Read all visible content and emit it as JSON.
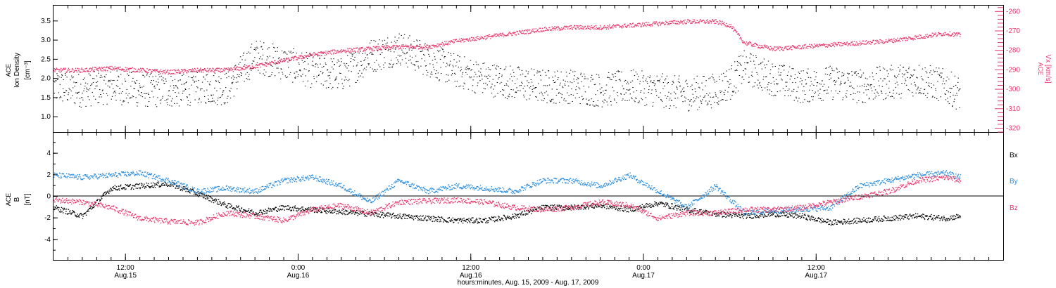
{
  "chart_data": [
    {
      "type": "scatter",
      "panel": "top",
      "ylabel_left": [
        "ACE",
        "Ion Density",
        "[cm⁻³]"
      ],
      "ylabel_right": [
        "ACE",
        "Vx [km/s]"
      ],
      "left_yticks": [
        "1.0",
        "1.5",
        "2.0",
        "2.5",
        "3.0",
        "3.5"
      ],
      "left_ylim": [
        0.6,
        3.9
      ],
      "right_yticks": [
        "-260",
        "-270",
        "-280",
        "-290",
        "-300",
        "-310",
        "-320"
      ],
      "right_ylim": [
        -322,
        -257
      ],
      "colors": {
        "density": "#000000",
        "vx": "#e8386d"
      },
      "series": [
        {
          "name": "Ion Density",
          "axis": "left",
          "color": "#000000",
          "x_hours": [
            0,
            2,
            4,
            6,
            9,
            10,
            12,
            14,
            16,
            18,
            20,
            22,
            24,
            26,
            28,
            30,
            32,
            34,
            36,
            38,
            40,
            42,
            44,
            46,
            47,
            48,
            50,
            52,
            54,
            56,
            58,
            60,
            62,
            63
          ],
          "y": [
            1.8,
            1.7,
            1.8,
            1.7,
            1.7,
            1.8,
            1.75,
            2.6,
            2.4,
            2.2,
            2.1,
            2.6,
            2.8,
            2.5,
            2.2,
            2.0,
            1.9,
            1.8,
            1.8,
            1.7,
            1.8,
            1.7,
            1.6,
            1.7,
            1.9,
            2.3,
            2.0,
            1.8,
            1.9,
            1.8,
            1.9,
            2.0,
            1.8,
            1.6
          ]
        },
        {
          "name": "Vx",
          "axis": "right",
          "color": "#e8386d",
          "x_hours": [
            0,
            2,
            4,
            6,
            8,
            10,
            12,
            13,
            14,
            16,
            18,
            20,
            22,
            24,
            26,
            28,
            30,
            32,
            34,
            36,
            38,
            40,
            42,
            44,
            46,
            47,
            48,
            50,
            52,
            54,
            56,
            58,
            60,
            62,
            63
          ],
          "y": [
            -290,
            -290,
            -289,
            -290,
            -291,
            -290,
            -290,
            -289,
            -288,
            -285,
            -282,
            -280,
            -279,
            -278,
            -278,
            -275,
            -273,
            -271,
            -269,
            -268,
            -268,
            -267,
            -266,
            -265,
            -265,
            -267,
            -276,
            -279,
            -278,
            -277,
            -276,
            -275,
            -273,
            -271,
            -272
          ]
        }
      ]
    },
    {
      "type": "scatter",
      "panel": "bottom",
      "ylabel_left": [
        "ACE",
        "B",
        "[nT]"
      ],
      "yticks": [
        "-4",
        "-2",
        "0",
        "2",
        "4"
      ],
      "ylim": [
        -5.9,
        5.9
      ],
      "legend": [
        "Bx",
        "By",
        "Bz"
      ],
      "legend_position": "right",
      "series": [
        {
          "name": "Bx",
          "color": "#000000",
          "x_hours": [
            0,
            2,
            4,
            6,
            8,
            10,
            12,
            14,
            16,
            18,
            20,
            22,
            24,
            26,
            28,
            30,
            32,
            34,
            36,
            38,
            40,
            42,
            44,
            46,
            48,
            50,
            52,
            54,
            56,
            58,
            60,
            62,
            63
          ],
          "y": [
            -1.0,
            -1.8,
            0.8,
            1.0,
            1.2,
            0.3,
            -0.8,
            -1.5,
            -1.0,
            -1.2,
            -1.4,
            -1.6,
            -1.8,
            -2.0,
            -2.2,
            -2.2,
            -1.8,
            -1.0,
            -1.0,
            -0.8,
            -1.2,
            -0.6,
            -1.2,
            -1.6,
            -1.8,
            -1.6,
            -1.8,
            -2.4,
            -2.2,
            -2.0,
            -1.8,
            -2.0,
            -1.8
          ]
        },
        {
          "name": "By",
          "color": "#2c8ddb",
          "x_hours": [
            0,
            2,
            4,
            6,
            8,
            10,
            12,
            14,
            16,
            18,
            20,
            22,
            24,
            26,
            28,
            30,
            32,
            34,
            36,
            38,
            40,
            42,
            44,
            46,
            48,
            50,
            52,
            54,
            56,
            58,
            60,
            62,
            63
          ],
          "y": [
            2.0,
            1.8,
            2.0,
            2.2,
            1.5,
            0.5,
            0.8,
            0.5,
            1.5,
            1.8,
            1.0,
            -0.5,
            1.5,
            0.5,
            1.0,
            0.8,
            0.5,
            1.5,
            1.5,
            1.0,
            2.0,
            0.5,
            -1.0,
            1.0,
            -1.5,
            -1.3,
            -1.2,
            -1.0,
            1.0,
            1.5,
            2.0,
            2.2,
            1.8
          ]
        },
        {
          "name": "Bz",
          "color": "#e8386d",
          "x_hours": [
            0,
            2,
            4,
            6,
            8,
            10,
            12,
            14,
            16,
            18,
            20,
            22,
            24,
            26,
            28,
            30,
            32,
            34,
            36,
            38,
            40,
            42,
            44,
            46,
            48,
            50,
            52,
            54,
            56,
            58,
            60,
            62,
            63
          ],
          "y": [
            -0.3,
            -0.5,
            -1.0,
            -2.0,
            -2.3,
            -2.4,
            -1.5,
            -1.8,
            -2.2,
            -1.2,
            -0.8,
            -1.5,
            -0.5,
            -0.4,
            -0.3,
            -0.5,
            -1.0,
            -1.2,
            -1.0,
            -0.5,
            -0.8,
            -2.0,
            -1.5,
            -1.5,
            -1.2,
            -1.2,
            -1.0,
            -0.5,
            0.0,
            0.5,
            1.5,
            1.8,
            1.5
          ]
        }
      ]
    }
  ],
  "x_axis": {
    "xlim_hours": [
      0,
      66
    ],
    "ticks": [
      {
        "time": "12:00",
        "date": "Aug.15",
        "hours": 5
      },
      {
        "time": "0:00",
        "date": "Aug.16",
        "hours": 17
      },
      {
        "time": "12:00",
        "date": "Aug.16",
        "hours": 29
      },
      {
        "time": "0:00",
        "date": "Aug.17",
        "hours": 41
      },
      {
        "time": "12:00",
        "date": "Aug.17",
        "hours": 53
      }
    ],
    "label": "hours:minutes, Aug. 15, 2009 - Aug. 17, 2009"
  }
}
